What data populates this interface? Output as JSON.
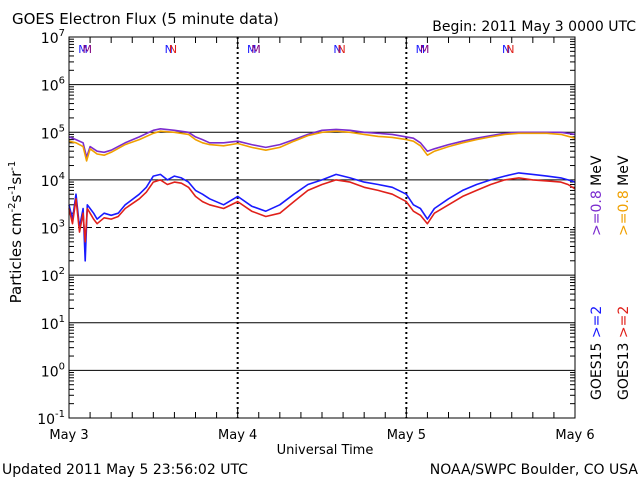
{
  "chart_data": {
    "type": "line",
    "title": "GOES Electron Flux (5 minute data)",
    "begin": "Begin: 2011 May 3 0000 UTC",
    "xlabel": "Universal Time",
    "ylabel_parts": [
      "Particles cm",
      "-2",
      "s",
      "-1",
      "sr",
      "-1"
    ],
    "x_ticks": [
      "May 3",
      "May 4",
      "May 5",
      "May 6"
    ],
    "xlim_hours": [
      0,
      72
    ],
    "y_scale": "log",
    "ylim": [
      0.1,
      10000000
    ],
    "y_ticks": [
      {
        "base": "10",
        "exp": "-1"
      },
      {
        "base": "10",
        "exp": "0"
      },
      {
        "base": "10",
        "exp": "1"
      },
      {
        "base": "10",
        "exp": "2"
      },
      {
        "base": "10",
        "exp": "3"
      },
      {
        "base": "10",
        "exp": "4"
      },
      {
        "base": "10",
        "exp": "5"
      },
      {
        "base": "10",
        "exp": "6"
      },
      {
        "base": "10",
        "exp": "7"
      }
    ],
    "threshold": 1000,
    "local_time_markers": [
      {
        "label": "M",
        "hour": 2.0,
        "color": "#1a1aff"
      },
      {
        "label": "M",
        "hour": 2.6,
        "color": "#800080"
      },
      {
        "label": "N",
        "hour": 14.2,
        "color": "#1a1aff"
      },
      {
        "label": "N",
        "hour": 14.8,
        "color": "#e0201a"
      },
      {
        "label": "M",
        "hour": 26.0,
        "color": "#1a1aff"
      },
      {
        "label": "M",
        "hour": 26.6,
        "color": "#800080"
      },
      {
        "label": "N",
        "hour": 38.2,
        "color": "#1a1aff"
      },
      {
        "label": "N",
        "hour": 38.8,
        "color": "#e0201a"
      },
      {
        "label": "M",
        "hour": 50.0,
        "color": "#1a1aff"
      },
      {
        "label": "M",
        "hour": 50.6,
        "color": "#800080"
      },
      {
        "label": "N",
        "hour": 62.2,
        "color": "#1a1aff"
      },
      {
        "label": "N",
        "hour": 62.8,
        "color": "#e0201a"
      }
    ],
    "series": [
      {
        "name": ">=0.8 MeV",
        "satellite": "GOES15",
        "color": "#7b2ccf",
        "x": [
          0,
          1,
          2,
          2.5,
          3,
          4,
          5,
          6,
          8,
          10,
          12,
          13,
          15,
          17,
          18,
          19,
          20,
          22,
          24,
          26,
          28,
          30,
          32,
          34,
          36,
          38,
          40,
          42,
          44,
          46,
          48,
          49,
          50,
          51,
          52,
          54,
          56,
          58,
          60,
          62,
          64,
          66,
          68,
          70,
          72
        ],
        "y": [
          80000,
          70000,
          60000,
          30000,
          50000,
          40000,
          38000,
          42000,
          60000,
          80000,
          110000,
          118000,
          110000,
          100000,
          80000,
          70000,
          60000,
          60000,
          65000,
          55000,
          48000,
          55000,
          70000,
          90000,
          110000,
          115000,
          110000,
          100000,
          95000,
          90000,
          80000,
          75000,
          60000,
          40000,
          45000,
          55000,
          65000,
          75000,
          85000,
          95000,
          100000,
          100000,
          100000,
          100000,
          90000
        ]
      },
      {
        "name": ">=0.8 MeV",
        "satellite": "GOES13",
        "color": "#f0a000",
        "x": [
          0,
          1,
          2,
          2.5,
          3,
          4,
          5,
          6,
          8,
          10,
          12,
          13,
          15,
          17,
          18,
          19,
          20,
          22,
          24,
          26,
          28,
          30,
          32,
          34,
          36,
          38,
          40,
          42,
          44,
          46,
          48,
          49,
          50,
          51,
          52,
          54,
          56,
          58,
          60,
          62,
          64,
          66,
          68,
          70,
          72
        ],
        "y": [
          65000,
          60000,
          50000,
          25000,
          45000,
          35000,
          33000,
          38000,
          55000,
          70000,
          95000,
          105000,
          100000,
          90000,
          70000,
          60000,
          55000,
          52000,
          58000,
          48000,
          42000,
          48000,
          65000,
          85000,
          100000,
          105000,
          100000,
          90000,
          82000,
          78000,
          70000,
          65000,
          52000,
          33000,
          40000,
          50000,
          60000,
          70000,
          80000,
          90000,
          95000,
          95000,
          95000,
          90000,
          75000
        ]
      },
      {
        "name": ">=2 MeV",
        "satellite": "GOES15",
        "color": "#1a1aff",
        "x": [
          0,
          0.5,
          1,
          1.5,
          2,
          2.3,
          2.6,
          3,
          3.5,
          4,
          5,
          6,
          7,
          8,
          10,
          11,
          12,
          13,
          14,
          15,
          16,
          17,
          18,
          19,
          20,
          22,
          24,
          26,
          28,
          30,
          32,
          34,
          36,
          38,
          40,
          42,
          44,
          46,
          48,
          49,
          50,
          51,
          52,
          54,
          56,
          58,
          60,
          62,
          64,
          66,
          68,
          70,
          71,
          72
        ],
        "y": [
          3000,
          1500,
          5000,
          1000,
          2500,
          200,
          3000,
          2500,
          2000,
          1500,
          2000,
          1800,
          2000,
          3000,
          5000,
          7000,
          12000,
          13000,
          10000,
          12000,
          11000,
          9000,
          6000,
          5000,
          4000,
          3000,
          4500,
          2800,
          2200,
          3000,
          5000,
          8000,
          10000,
          13000,
          11000,
          9000,
          8000,
          7000,
          5000,
          3000,
          2500,
          1500,
          2500,
          4000,
          6000,
          8000,
          10000,
          12000,
          14000,
          13000,
          12000,
          11000,
          10000,
          9000
        ]
      },
      {
        "name": ">=2 MeV",
        "satellite": "GOES13",
        "color": "#e0201a",
        "x": [
          0,
          0.5,
          1,
          1.5,
          2,
          2.3,
          2.6,
          3,
          3.5,
          4,
          5,
          6,
          7,
          8,
          10,
          11,
          12,
          13,
          14,
          15,
          16,
          17,
          18,
          19,
          20,
          22,
          24,
          26,
          28,
          30,
          32,
          34,
          36,
          38,
          40,
          42,
          44,
          46,
          48,
          49,
          50,
          51,
          52,
          54,
          56,
          58,
          60,
          62,
          64,
          66,
          68,
          70,
          71,
          72
        ],
        "y": [
          2500,
          1200,
          4000,
          800,
          2000,
          500,
          2500,
          2000,
          1500,
          1200,
          1600,
          1500,
          1700,
          2500,
          4000,
          5500,
          9000,
          10000,
          8000,
          9000,
          8500,
          7000,
          4500,
          3500,
          3000,
          2500,
          3500,
          2200,
          1700,
          2000,
          3500,
          6000,
          8000,
          10000,
          9000,
          7000,
          6000,
          5000,
          3500,
          2200,
          1800,
          1200,
          2000,
          3000,
          4500,
          6000,
          8000,
          10000,
          11000,
          10000,
          9500,
          9000,
          8000,
          6500
        ]
      }
    ],
    "legend_labels": [
      {
        "prefix": "GOES15",
        "text": ">=2",
        "color": "#1a1aff",
        "unit": ""
      },
      {
        "prefix": "",
        "text": ">=0.8",
        "color": "#7b2ccf",
        "unit": "MeV"
      },
      {
        "prefix": "GOES13",
        "text": ">=2",
        "color": "#e0201a",
        "unit": ""
      },
      {
        "prefix": "",
        "text": ">=0.8",
        "color": "#f0a000",
        "unit": "MeV"
      }
    ],
    "legend_placement": "right",
    "updated": "Updated 2011 May  5 23:56:02 UTC",
    "source": "NOAA/SWPC Boulder, CO USA",
    "grid": true
  }
}
